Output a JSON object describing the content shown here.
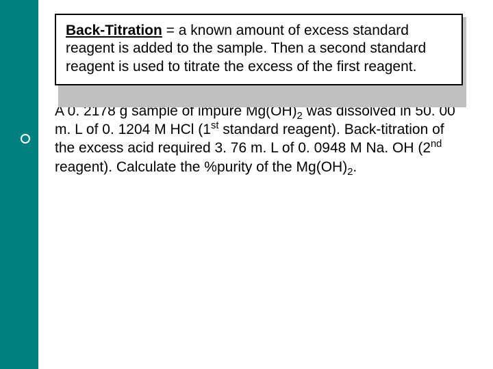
{
  "colors": {
    "stripe": "#008080",
    "box_border": "#000000",
    "box_shadow": "#c0c0c0",
    "background": "#ffffff",
    "text": "#000000"
  },
  "typography": {
    "font_family": "Verdana",
    "body_fontsize_pt": 16,
    "line_height": 1.25
  },
  "definition": {
    "term": "Back-Titration",
    "equals": " = ",
    "text": "a known amount of excess standard reagent is added to the sample. Then a second standard reagent is used to titrate the excess of the first reagent."
  },
  "problem": {
    "p1a": "A 0. 2178 g sample of impure Mg(OH)",
    "p1_sub": "2",
    "p1b": " was dissolved in 50. 00 m. L of 0. 1204 M HCl (1",
    "p1_sup": "st",
    "p1c": " standard reagent). Back-titration of the excess acid required 3. 76 m. L of 0. 0948 M Na. OH (2",
    "p1_sup2": "nd",
    "p1d": " reagent). Calculate the %purity of the Mg(OH)",
    "p1_sub2": "2",
    "p1e": "."
  }
}
